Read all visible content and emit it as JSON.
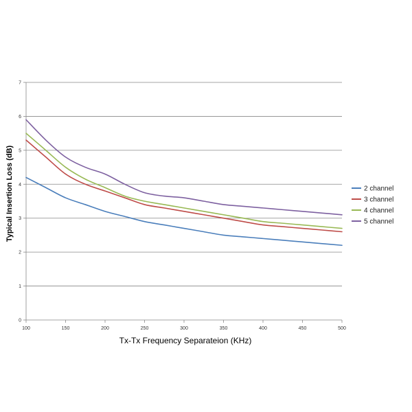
{
  "chart_data": {
    "type": "line",
    "xlabel": "Tx-Tx Frequency Separateion (KHz)",
    "ylabel": "Typical Insertion Loss (dB)",
    "xlim": [
      100,
      500
    ],
    "ylim": [
      0,
      7
    ],
    "x_ticks": [
      100,
      150,
      200,
      250,
      300,
      350,
      400,
      450,
      500
    ],
    "y_ticks": [
      0,
      1,
      2,
      3,
      4,
      5,
      6,
      7
    ],
    "grid": "horizontal",
    "legend_position": "right",
    "x": [
      100,
      125,
      150,
      175,
      200,
      225,
      250,
      275,
      300,
      325,
      350,
      375,
      400,
      425,
      450,
      475,
      500
    ],
    "series": [
      {
        "name": "2 channel",
        "color": "#4a7ebb",
        "values": [
          4.2,
          3.9,
          3.6,
          3.4,
          3.2,
          3.05,
          2.9,
          2.8,
          2.7,
          2.6,
          2.5,
          2.45,
          2.4,
          2.35,
          2.3,
          2.25,
          2.2
        ]
      },
      {
        "name": "3 channel",
        "color": "#be4b48",
        "values": [
          5.3,
          4.8,
          4.3,
          4.0,
          3.8,
          3.6,
          3.4,
          3.3,
          3.2,
          3.1,
          3.0,
          2.9,
          2.8,
          2.75,
          2.7,
          2.65,
          2.6
        ]
      },
      {
        "name": "4 channel",
        "color": "#98b954",
        "values": [
          5.5,
          5.0,
          4.5,
          4.15,
          3.9,
          3.65,
          3.5,
          3.4,
          3.3,
          3.2,
          3.1,
          3.0,
          2.9,
          2.85,
          2.8,
          2.75,
          2.7
        ]
      },
      {
        "name": "5 channel",
        "color": "#7d60a0",
        "values": [
          5.9,
          5.3,
          4.8,
          4.5,
          4.3,
          4.0,
          3.75,
          3.65,
          3.6,
          3.5,
          3.4,
          3.35,
          3.3,
          3.25,
          3.2,
          3.15,
          3.1
        ]
      }
    ],
    "grid_color": "#888888",
    "axis_color": "#888888"
  }
}
